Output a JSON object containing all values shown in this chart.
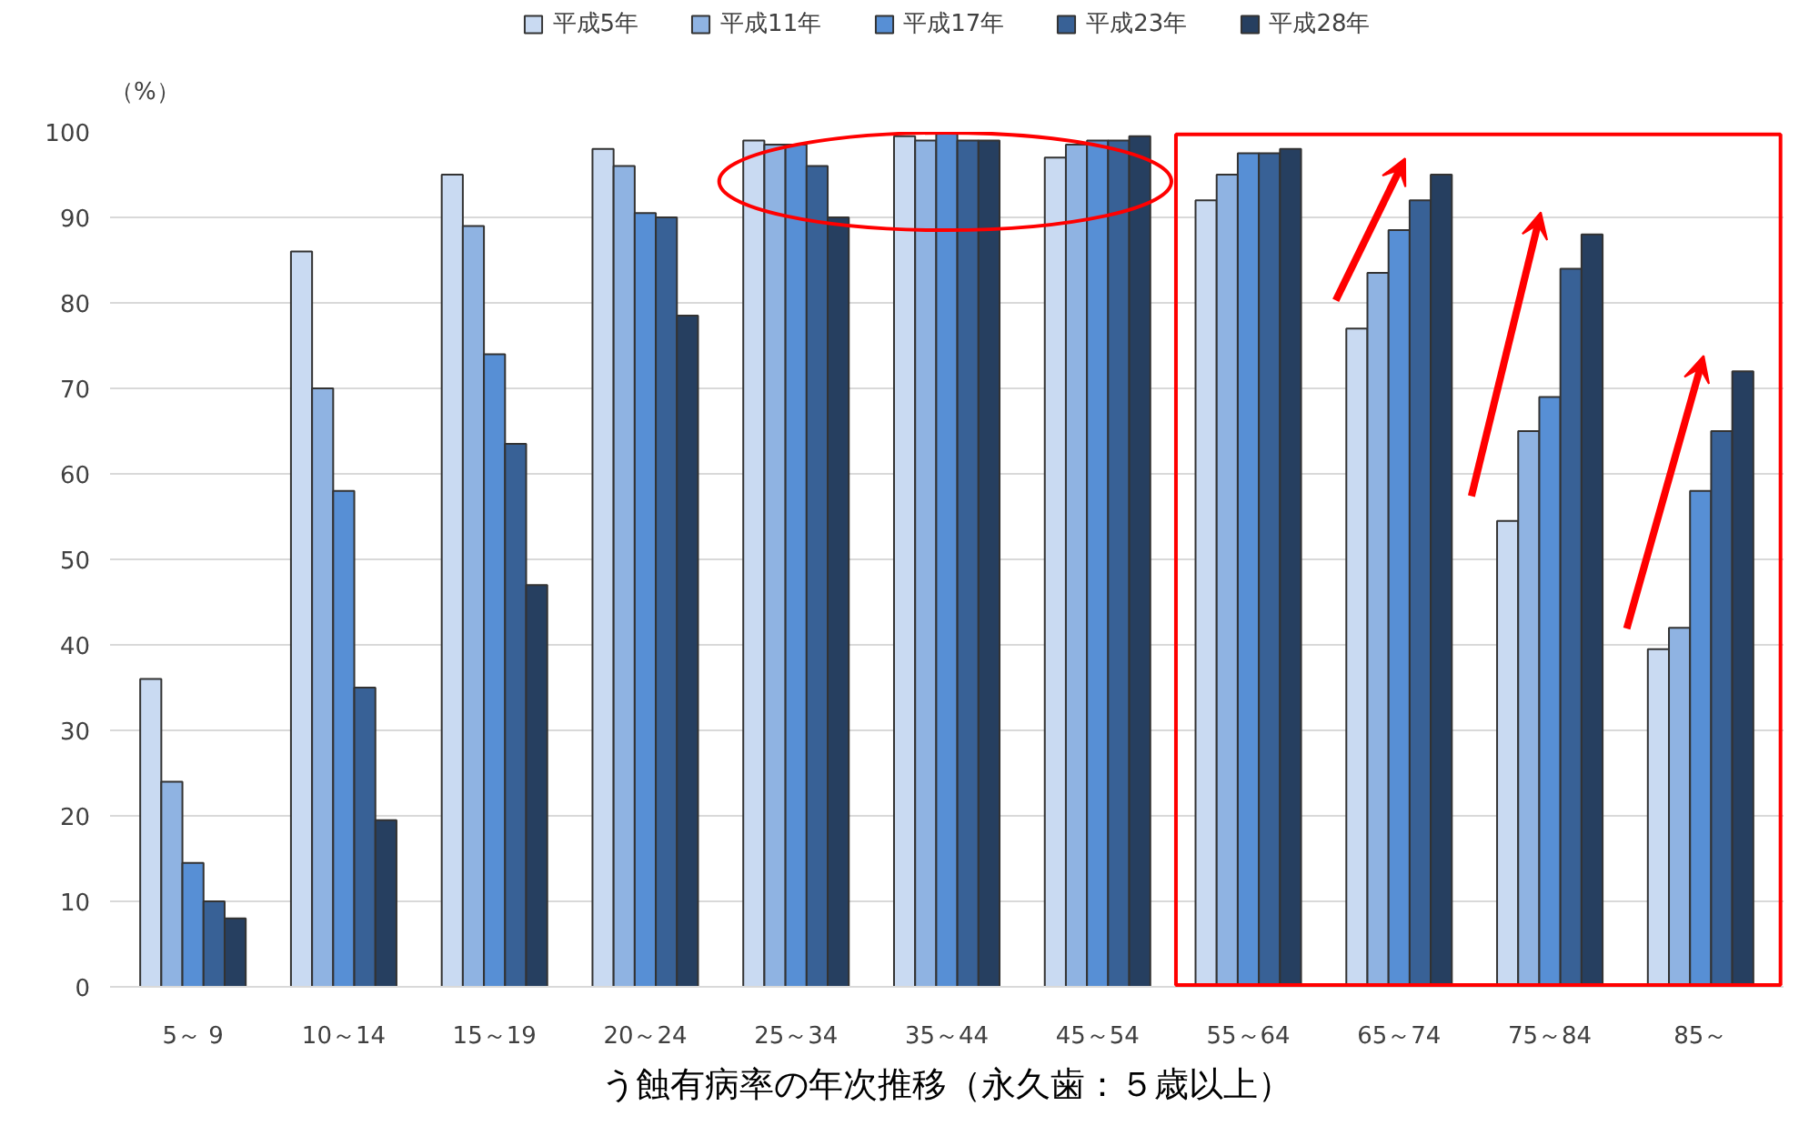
{
  "chart_data": {
    "type": "bar",
    "title": "う蝕有病率の年次推移（永久歯：５歳以上）",
    "ylabel": "（%）",
    "categories": [
      "5～ 9",
      "10～14",
      "15～19",
      "20～24",
      "25～34",
      "35～44",
      "45～54",
      "55～64",
      "65～74",
      "75～84",
      "85～"
    ],
    "series": [
      {
        "name": "平成5年",
        "color": "#c9daf2",
        "values": [
          36,
          86,
          95,
          98,
          99,
          99.5,
          97,
          92,
          77,
          54.5,
          39.5
        ]
      },
      {
        "name": "平成11年",
        "color": "#8fb3e2",
        "values": [
          24,
          70,
          89,
          96,
          98.5,
          99,
          98.5,
          95,
          83.5,
          65,
          42
        ]
      },
      {
        "name": "平成17年",
        "color": "#578fd5",
        "values": [
          14.5,
          58,
          74,
          90.5,
          98.5,
          100,
          99,
          97.5,
          88.5,
          69,
          58
        ]
      },
      {
        "name": "平成23年",
        "color": "#386196",
        "values": [
          10,
          35,
          63.5,
          90,
          96,
          99,
          99,
          97.5,
          92,
          84,
          65
        ]
      },
      {
        "name": "平成28年",
        "color": "#263f60",
        "values": [
          8,
          19.5,
          47,
          78.5,
          90,
          99,
          99.5,
          98,
          95,
          88,
          72
        ]
      }
    ],
    "ylim": [
      0,
      100
    ],
    "yticks": [
      0,
      10,
      20,
      30,
      40,
      50,
      60,
      70,
      80,
      90,
      100
    ],
    "grid": "y",
    "legend": "top"
  }
}
